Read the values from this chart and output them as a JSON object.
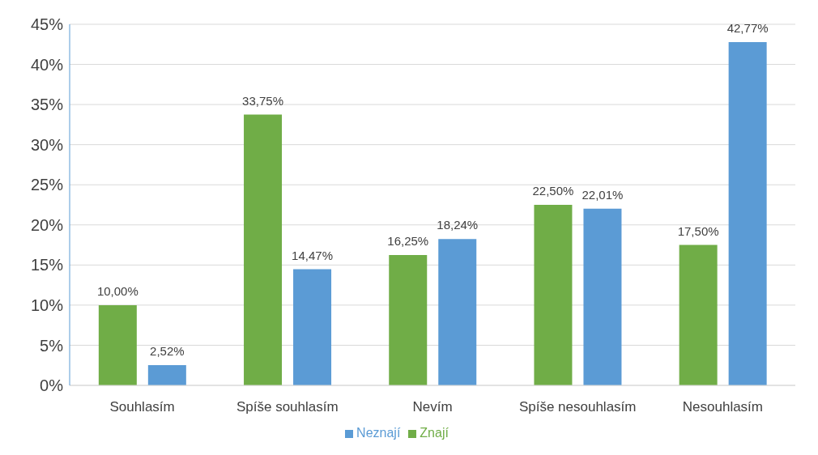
{
  "chart_data": {
    "type": "bar",
    "categories": [
      "Souhlasím",
      "Spíše souhlasím",
      "Nevím",
      "Spíše nesouhlasím",
      "Nesouhlasím"
    ],
    "series": [
      {
        "name": "Znají",
        "color": "#70ad47",
        "values": [
          10.0,
          33.75,
          16.25,
          22.5,
          17.5
        ],
        "value_labels": [
          "10,00%",
          "33,75%",
          "16,25%",
          "22,50%",
          "17,50%"
        ]
      },
      {
        "name": "Neznají",
        "color": "#5b9bd5",
        "values": [
          2.52,
          14.47,
          18.24,
          22.01,
          42.77
        ],
        "value_labels": [
          "2,52%",
          "14,47%",
          "18,24%",
          "22,01%",
          "42,77%"
        ]
      }
    ],
    "ylim": [
      0,
      45
    ],
    "yticks": [
      {
        "value": 0,
        "label": "0%"
      },
      {
        "value": 5,
        "label": "5%"
      },
      {
        "value": 10,
        "label": "10%"
      },
      {
        "value": 15,
        "label": "15%"
      },
      {
        "value": 20,
        "label": "20%"
      },
      {
        "value": 25,
        "label": "25%"
      },
      {
        "value": 30,
        "label": "30%"
      },
      {
        "value": 35,
        "label": "35%"
      },
      {
        "value": 40,
        "label": "40%"
      },
      {
        "value": 45,
        "label": "45%"
      }
    ],
    "grid": "y",
    "legend": "bottom"
  }
}
